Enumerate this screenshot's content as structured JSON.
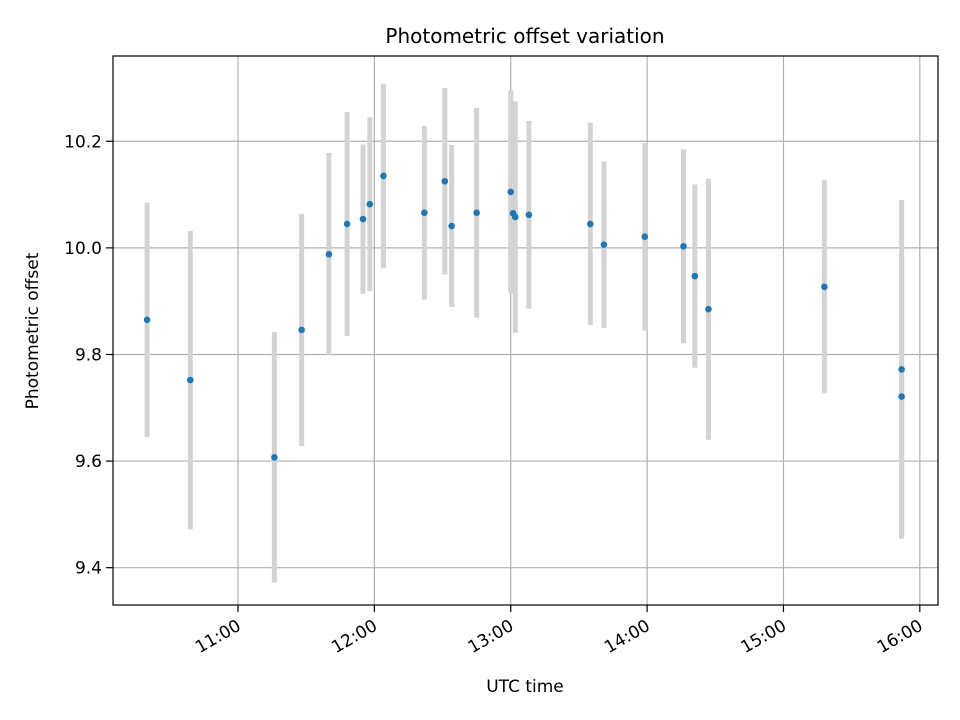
{
  "chart_data": {
    "type": "scatter",
    "title": "Photometric offset variation",
    "xlabel": "UTC time",
    "ylabel": "Photometric offset",
    "x_unit": "UTC time (HH:MM)",
    "xlim": [
      "10:05",
      "16:08"
    ],
    "ylim": [
      9.33,
      10.36
    ],
    "x_ticks": [
      "11:00",
      "12:00",
      "13:00",
      "14:00",
      "15:00",
      "16:00"
    ],
    "y_ticks": [
      "9.4",
      "9.6",
      "9.8",
      "10.0",
      "10.2"
    ],
    "y_tick_values": [
      9.4,
      9.6,
      9.8,
      10.0,
      10.2
    ],
    "grid": true,
    "point_color": "#1f77b4",
    "errorbar_color": "#d3d3d3",
    "points": [
      {
        "x": "10:20",
        "y": 9.865,
        "yerr": 0.22
      },
      {
        "x": "10:39",
        "y": 9.752,
        "yerr": 0.28
      },
      {
        "x": "11:16",
        "y": 9.607,
        "yerr": 0.235
      },
      {
        "x": "11:28",
        "y": 9.846,
        "yerr": 0.218
      },
      {
        "x": "11:40",
        "y": 9.988,
        "yerr": 0.19
      },
      {
        "x": "11:48",
        "y": 10.045,
        "yerr": 0.21
      },
      {
        "x": "11:55",
        "y": 10.054,
        "yerr": 0.14
      },
      {
        "x": "11:58",
        "y": 10.082,
        "yerr": 0.163
      },
      {
        "x": "12:04",
        "y": 10.135,
        "yerr": 0.173
      },
      {
        "x": "12:22",
        "y": 10.066,
        "yerr": 0.163
      },
      {
        "x": "12:31",
        "y": 10.125,
        "yerr": 0.175
      },
      {
        "x": "12:34",
        "y": 10.041,
        "yerr": 0.152
      },
      {
        "x": "12:45",
        "y": 10.066,
        "yerr": 0.197
      },
      {
        "x": "13:00",
        "y": 10.105,
        "yerr": 0.19
      },
      {
        "x": "13:01",
        "y": 10.065,
        "yerr": 0.15
      },
      {
        "x": "13:02",
        "y": 10.058,
        "yerr": 0.217
      },
      {
        "x": "13:08",
        "y": 10.062,
        "yerr": 0.176
      },
      {
        "x": "13:35",
        "y": 10.045,
        "yerr": 0.19
      },
      {
        "x": "13:41",
        "y": 10.006,
        "yerr": 0.156
      },
      {
        "x": "13:59",
        "y": 10.021,
        "yerr": 0.176
      },
      {
        "x": "14:16",
        "y": 10.003,
        "yerr": 0.182
      },
      {
        "x": "14:21",
        "y": 9.947,
        "yerr": 0.172
      },
      {
        "x": "14:27",
        "y": 9.885,
        "yerr": 0.245
      },
      {
        "x": "15:18",
        "y": 9.927,
        "yerr": 0.2
      },
      {
        "x": "15:52",
        "y": 9.772,
        "yerr": 0.318
      },
      {
        "x": "15:52",
        "y": 9.721,
        "yerr": 0.265
      }
    ]
  }
}
